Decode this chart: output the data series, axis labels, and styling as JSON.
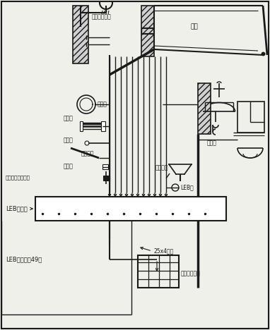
{
  "bg_color": "#f0f0eb",
  "line_color": "#1a1a1a",
  "text_color": "#1a1a1a",
  "labels": {
    "shower_pipe": "淋浴莲蓬水管",
    "bathtub": "浴盆",
    "towel_ring": "毛巾环",
    "towel_rack": "浴巾架",
    "curtain_rod": "浴帘杆",
    "metal_handle": "金属扶手",
    "hot_pipe": "热水管",
    "bathroom_socket": "卫生间插座接地孔",
    "leb_terminal": "LEB端子箱",
    "leb_note": "LEB端子箱详49页",
    "leb_plate": "LEB板",
    "drain_pipe": "排水管",
    "metal_drain": "金属地漏",
    "steel_bar": "25x4扁钢",
    "bathroom_grid": "卫生间钢筋网"
  }
}
